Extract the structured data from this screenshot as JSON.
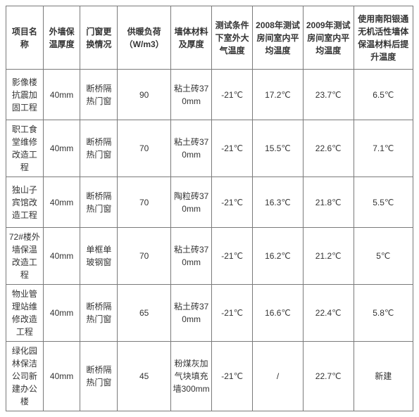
{
  "table": {
    "columns": [
      "项目名称",
      "外墙保温厚度",
      "门窗更换情况",
      "供暖负荷（W/m3）",
      "墙体材料及厚度",
      "测试条件下室外大气温度",
      "2008年测试房间室内平均温度",
      "2009年测试房间室内平均温度",
      "使用南阳银通无机活性墙体保温材料后提升温度"
    ],
    "col_classes": [
      "c0",
      "c1",
      "c2",
      "c3",
      "c4",
      "c5",
      "c6",
      "c7",
      "c8"
    ],
    "rows": [
      [
        "影像楼抗震加固工程",
        "40mm",
        "断桥隔热门窗",
        "90",
        "粘土砖370mm",
        "-21℃",
        "17.2℃",
        "23.7℃",
        "6.5℃"
      ],
      [
        "职工食堂维修改造工程",
        "40mm",
        "断桥隔热门窗",
        "70",
        "粘土砖370mm",
        "-21℃",
        "15.5℃",
        "22.6℃",
        "7.1℃"
      ],
      [
        "独山子宾馆改造工程",
        "40mm",
        "断桥隔热门窗",
        "70",
        "陶粒砖370mm",
        "-21℃",
        "16.3℃",
        "21.8℃",
        "5.5℃"
      ],
      [
        "72#楼外墙保温改造工程",
        "40mm",
        "单框单玻钢窗",
        "70",
        "粘土砖370mm",
        "-21℃",
        "16.2℃",
        "21.2℃",
        "5℃"
      ],
      [
        "物业管理站维修改造工程",
        "40mm",
        "断桥隔热门窗",
        "65",
        "粘土砖370mm",
        "-21℃",
        "16.6℃",
        "22.4℃",
        "5.8℃"
      ],
      [
        "绿化园林保洁公司新建办公楼",
        "40mm",
        "断桥隔热门窗",
        "45",
        "粉煤灰加气块填充墙300mm",
        "-21℃",
        "/",
        "22.7℃",
        "新建"
      ]
    ],
    "border_color": "#7a7a7a",
    "text_color": "#333333",
    "font_size": 12,
    "background_color": "#ffffff"
  }
}
